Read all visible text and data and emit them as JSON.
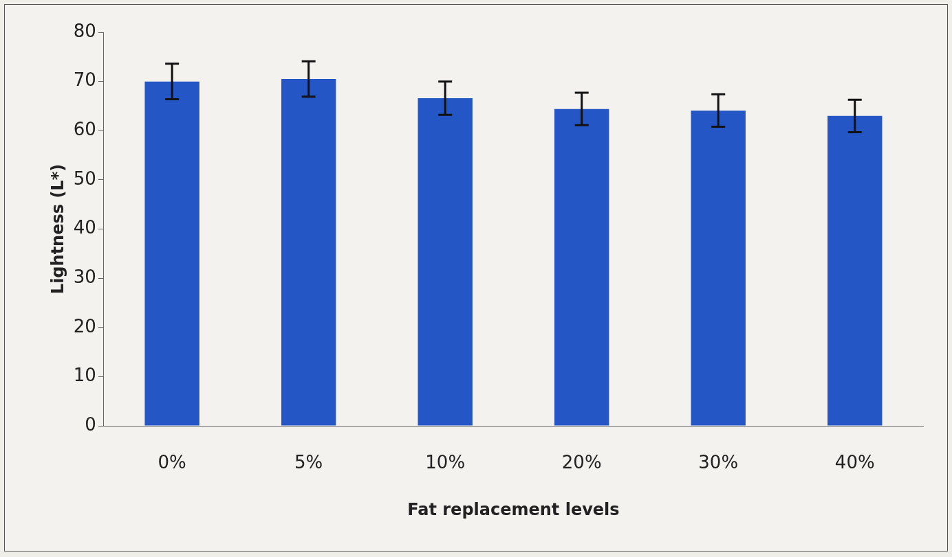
{
  "chart_data": {
    "type": "bar",
    "xlabel": "Fat replacement levels",
    "ylabel": "Lightness (L*)",
    "categories": [
      "0%",
      "5%",
      "10%",
      "20%",
      "30%",
      "40%"
    ],
    "values": [
      70.0,
      70.5,
      66.6,
      64.4,
      64.1,
      63.0
    ],
    "errors": [
      3.6,
      3.6,
      3.4,
      3.3,
      3.3,
      3.3
    ],
    "color": "#2457c5",
    "ylim": [
      0,
      80
    ],
    "yticks": [
      0,
      10,
      20,
      30,
      40,
      50,
      60,
      70,
      80
    ],
    "grid": false,
    "legend": false
  }
}
